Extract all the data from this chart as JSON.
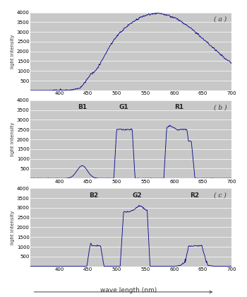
{
  "xlim": [
    350,
    700
  ],
  "ylim": [
    0,
    4000
  ],
  "yticks": [
    0,
    500,
    1000,
    1500,
    2000,
    2500,
    3000,
    3500,
    4000
  ],
  "xticks": [
    350,
    400,
    450,
    500,
    550,
    600,
    650,
    700
  ],
  "bg_color": "#c8c8c8",
  "line_color": "#00008B",
  "xlabel": "wave length (nm)",
  "ylabel": "light intensity",
  "panel_labels": [
    "( a )",
    "( b )",
    "( c )"
  ],
  "panel_b_labels": [
    [
      "B1",
      440
    ],
    [
      "G1",
      512
    ],
    [
      "R1",
      608
    ]
  ],
  "panel_c_labels": [
    [
      "B2",
      460
    ],
    [
      "G2",
      535
    ],
    [
      "R2",
      635
    ]
  ]
}
